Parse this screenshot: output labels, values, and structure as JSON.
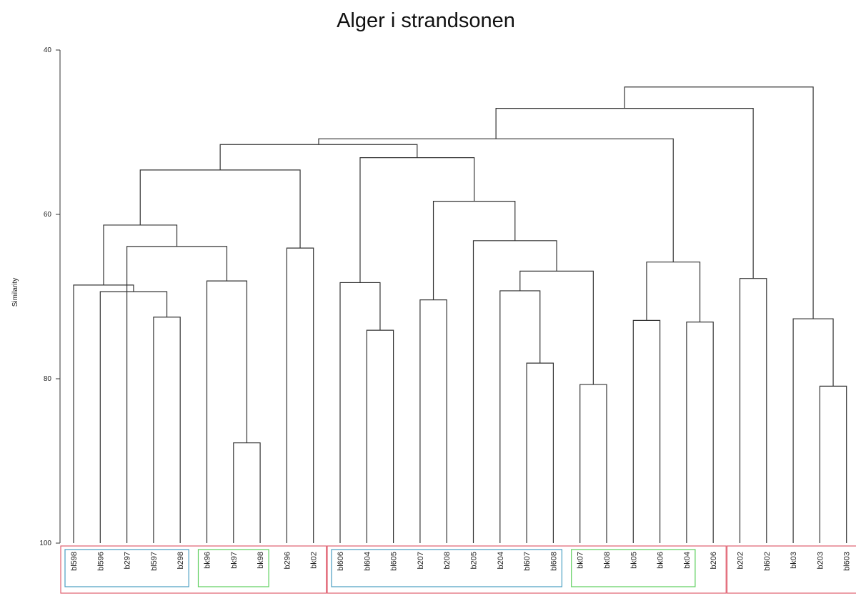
{
  "chart_data": {
    "type": "dendrogram",
    "title": "Alger i strandsonen",
    "ylabel": "Similarity",
    "ylim": [
      40,
      100
    ],
    "y_ticks": [
      40,
      60,
      80,
      100
    ],
    "leaves": [
      "bl598",
      "bl596",
      "b297",
      "bl597",
      "b298",
      "bk96",
      "bk97",
      "bk98",
      "b296",
      "bk02",
      "bl606",
      "bl604",
      "bl605",
      "b207",
      "b208",
      "b205",
      "b204",
      "bl607",
      "bl608",
      "bk07",
      "bk08",
      "bk05",
      "bk06",
      "bk04",
      "b206",
      "b202",
      "bl602",
      "bk03",
      "b203",
      "bl603"
    ],
    "merges": [
      {
        "id": "m1",
        "a": "bl597",
        "b": "b298",
        "similarity": 72.5
      },
      {
        "id": "m2",
        "a": "bl596",
        "b": "m1",
        "similarity": 69.4
      },
      {
        "id": "m3",
        "a": "bl598",
        "b": "m2",
        "similarity": 68.6
      },
      {
        "id": "m4",
        "a": "bk97",
        "b": "bk98",
        "similarity": 87.8
      },
      {
        "id": "m5",
        "a": "bk96",
        "b": "m4",
        "similarity": 68.1
      },
      {
        "id": "m6",
        "a": "b297",
        "b": "m5",
        "similarity": 63.9
      },
      {
        "id": "m7",
        "a": "m3",
        "b": "m6",
        "similarity": 61.3
      },
      {
        "id": "m8",
        "a": "b296",
        "b": "bk02",
        "similarity": 64.1
      },
      {
        "id": "m9",
        "a": "m7",
        "b": "m8",
        "similarity": 54.6
      },
      {
        "id": "m10",
        "a": "bl604",
        "b": "bl605",
        "similarity": 74.1
      },
      {
        "id": "m11",
        "a": "bl606",
        "b": "m10",
        "similarity": 68.3
      },
      {
        "id": "m12",
        "a": "b207",
        "b": "b208",
        "similarity": 70.4
      },
      {
        "id": "m13",
        "a": "bl607",
        "b": "bl608",
        "similarity": 78.1
      },
      {
        "id": "m14",
        "a": "b204",
        "b": "m13",
        "similarity": 69.3
      },
      {
        "id": "m15",
        "a": "bk07",
        "b": "bk08",
        "similarity": 80.7
      },
      {
        "id": "m16",
        "a": "m14",
        "b": "m15",
        "similarity": 66.9
      },
      {
        "id": "m17",
        "a": "b205",
        "b": "m16",
        "similarity": 63.2
      },
      {
        "id": "m18",
        "a": "m12",
        "b": "m17",
        "similarity": 58.4
      },
      {
        "id": "m19",
        "a": "m11",
        "b": "m18",
        "similarity": 53.1
      },
      {
        "id": "m20",
        "a": "m9",
        "b": "m19",
        "similarity": 51.5
      },
      {
        "id": "m21",
        "a": "bk05",
        "b": "bk06",
        "similarity": 72.9
      },
      {
        "id": "m22",
        "a": "bk04",
        "b": "b206",
        "similarity": 73.1
      },
      {
        "id": "m23",
        "a": "m21",
        "b": "m22",
        "similarity": 65.8
      },
      {
        "id": "m24",
        "a": "m20",
        "b": "m23",
        "similarity": 50.8
      },
      {
        "id": "m25",
        "a": "b202",
        "b": "bl602",
        "similarity": 67.8
      },
      {
        "id": "m26",
        "a": "m24",
        "b": "m25",
        "similarity": 47.1
      },
      {
        "id": "m27",
        "a": "b203",
        "b": "bl603",
        "similarity": 80.9
      },
      {
        "id": "m28",
        "a": "bk03",
        "b": "m27",
        "similarity": 72.7
      },
      {
        "id": "m29",
        "a": "m26",
        "b": "m28",
        "similarity": 44.5
      }
    ],
    "group_boxes": [
      {
        "first": "bl598",
        "last": "bk02",
        "color": "#e06070",
        "outer": true
      },
      {
        "first": "bl606",
        "last": "b206",
        "color": "#e06070",
        "outer": true
      },
      {
        "first": "b202",
        "last": "bl603",
        "color": "#e06070",
        "outer": true
      },
      {
        "first": "bl598",
        "last": "b298",
        "color": "#4a9ec2",
        "outer": false
      },
      {
        "first": "bk96",
        "last": "bk98",
        "color": "#5ecf5e",
        "outer": false
      },
      {
        "first": "bl606",
        "last": "bl608",
        "color": "#4a9ec2",
        "outer": false
      },
      {
        "first": "bk07",
        "last": "bk04",
        "color": "#5ecf5e",
        "outer": false
      }
    ],
    "grid": false
  }
}
